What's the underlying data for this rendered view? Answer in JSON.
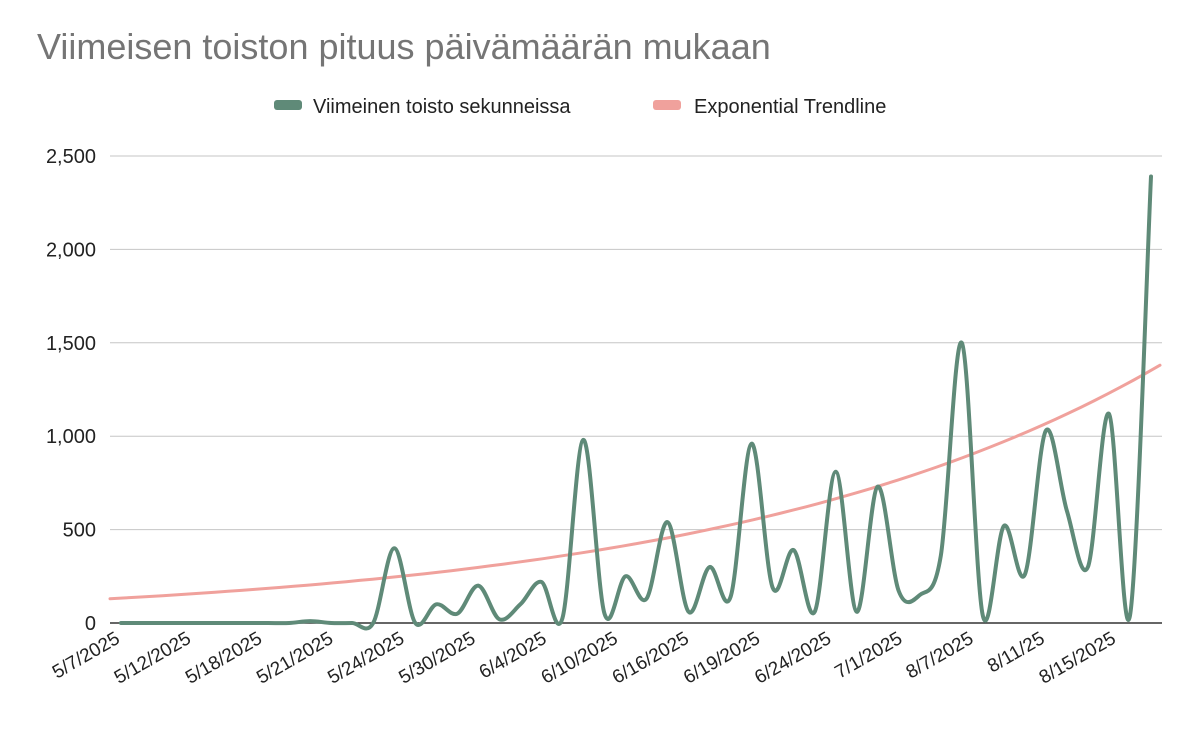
{
  "chart_data": {
    "type": "line",
    "title": "Viimeisen toiston pituus päivämäärän mukaan",
    "xlabel": "",
    "ylabel": "",
    "ylim": [
      0,
      2500
    ],
    "yticks": [
      "0",
      "500",
      "1,000",
      "1,500",
      "2,000",
      "2,500"
    ],
    "ytick_values": [
      0,
      500,
      1000,
      1500,
      2000,
      2500
    ],
    "grid": true,
    "legend_position": "top",
    "x_tick_labels": [
      "5/7/2025",
      "5/12/2025",
      "5/18/2025",
      "5/21/2025",
      "5/24/2025",
      "5/30/2025",
      "6/4/2025",
      "6/10/2025",
      "6/16/2025",
      "6/19/2025",
      "6/24/2025",
      "7/1/2025",
      "8/7/2025",
      "8/11/25",
      "8/15/2025"
    ],
    "series": [
      {
        "name": "Viimeinen toisto sekunneissa",
        "color": "#5f8a78",
        "values": [
          0,
          0,
          0,
          0,
          0,
          0,
          0,
          0,
          0,
          10,
          0,
          0,
          0,
          400,
          0,
          100,
          50,
          200,
          20,
          100,
          220,
          25,
          980,
          50,
          250,
          130,
          540,
          60,
          300,
          140,
          960,
          190,
          390,
          60,
          810,
          60,
          730,
          170,
          150,
          360,
          1500,
          40,
          520,
          260,
          1030,
          600,
          300,
          1120,
          40,
          2390
        ]
      },
      {
        "name": "Exponential Trendline",
        "color": "#f0a19c",
        "trend": {
          "start": 130,
          "end": 1380
        }
      }
    ]
  }
}
